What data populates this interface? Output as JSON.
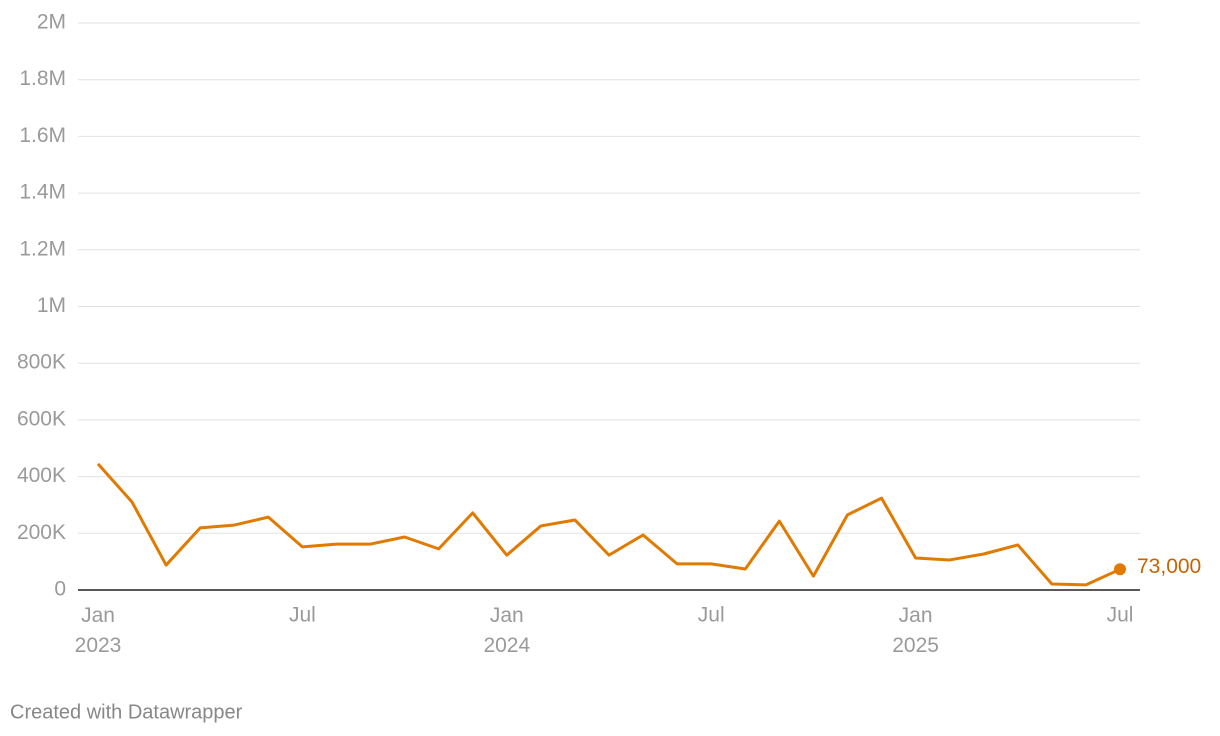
{
  "chart_data": {
    "type": "line",
    "categories": [
      "Jan 2023",
      null,
      null,
      null,
      null,
      null,
      "Jul",
      null,
      null,
      null,
      null,
      null,
      "Jan 2024",
      null,
      null,
      null,
      null,
      null,
      "Jul",
      null,
      null,
      null,
      null,
      null,
      "Jan 2025",
      null,
      null,
      null,
      null,
      null,
      "Jul"
    ],
    "values": [
      445000,
      310000,
      88000,
      219000,
      229000,
      257000,
      152000,
      162000,
      162000,
      187000,
      145000,
      272000,
      123000,
      226000,
      247000,
      123000,
      194000,
      92000,
      92000,
      74000,
      243000,
      49000,
      265000,
      324000,
      113000,
      106000,
      127000,
      159000,
      21000,
      18000,
      73000
    ],
    "value_labels": [
      null,
      null,
      null,
      null,
      null,
      null,
      null,
      null,
      null,
      null,
      null,
      null,
      null,
      null,
      null,
      null,
      null,
      null,
      null,
      null,
      null,
      null,
      null,
      null,
      null,
      null,
      null,
      null,
      null,
      null,
      "73,000"
    ],
    "color": "#e07a00",
    "label_color": "#c86400",
    "ylim": [
      0,
      2000000
    ],
    "yticks": [
      0,
      {
        "value": 200000,
        "label": "200K"
      },
      {
        "value": 400000,
        "label": "400K"
      },
      {
        "value": 600000,
        "label": "600K"
      },
      {
        "value": 800000,
        "label": "800K"
      },
      {
        "value": 1000000,
        "label": "1M"
      },
      {
        "value": 1200000,
        "label": "1.2M"
      },
      {
        "value": 1400000,
        "label": "1.4M"
      },
      {
        "value": 1600000,
        "label": "1.6M"
      },
      {
        "value": 1800000,
        "label": "1.8M"
      },
      {
        "value": 2000000,
        "label": "2M"
      }
    ],
    "grid": true,
    "credit": "Created with Datawrapper"
  }
}
